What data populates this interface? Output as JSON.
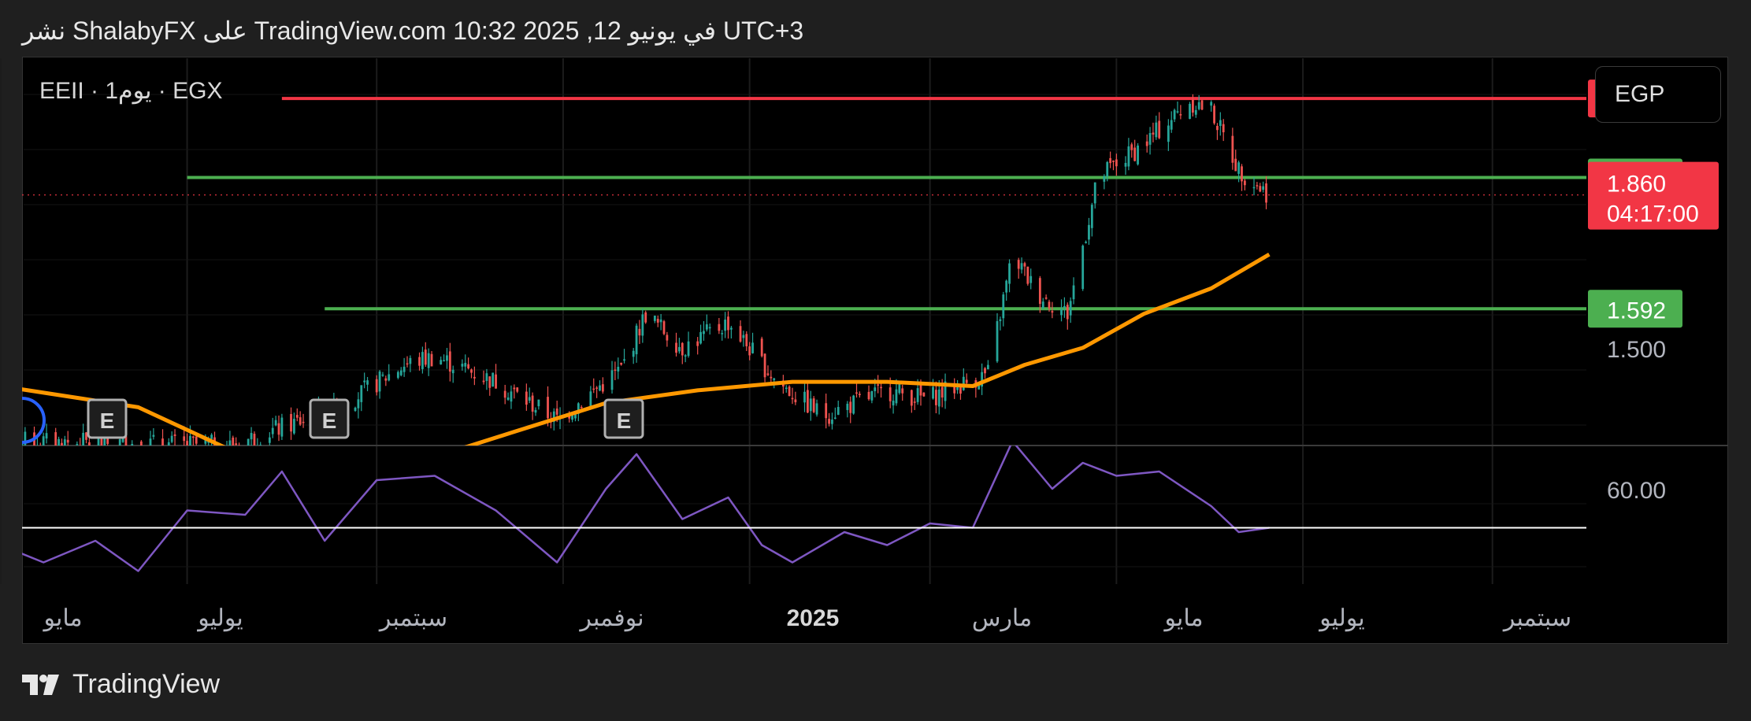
{
  "header": {
    "text": "نشر ShalabyFX على TradingView.com 10:32 2025 ,12 في يونيو UTC+3"
  },
  "symbol": {
    "text": "EEII · 1يوم · EGX"
  },
  "currency": {
    "label": "EGP"
  },
  "footer": {
    "brand": "TradingView"
  },
  "colors": {
    "background": "#000000",
    "red_line": "#f23645",
    "green_line": "#4caf50",
    "ma_line": "#ff9800",
    "rsi_line": "#7e57c2",
    "candle_up": "#26a69a",
    "candle_down": "#ef5350"
  },
  "chart_data": [
    {
      "type": "candlestick",
      "title": "",
      "x_tick_labels": [
        "مايو",
        "يوليو",
        "سبتمبر",
        "نوفمبر",
        "2025",
        "مارس",
        "مايو",
        "يوليو",
        "سبتمبر"
      ],
      "x_range": [
        "2024-05",
        "2025-09"
      ],
      "y_axis_labels": [
        "1.500"
      ],
      "ylim": [
        1.27,
        2.18
      ],
      "last_price": {
        "value": "1.860",
        "countdown": "04:17:00"
      },
      "horizontal_levels": [
        {
          "value": 2.087,
          "label": "2.087",
          "color": "#f23645",
          "start": "2024-08"
        },
        {
          "value": 1.901,
          "label": "1.901",
          "color": "#4caf50",
          "start": "2024-07"
        },
        {
          "value": 1.592,
          "label": "1.592",
          "color": "#4caf50",
          "start": "2024-08-15"
        }
      ],
      "earnings_markers": [
        {
          "date": "2024-06",
          "label": "E"
        },
        {
          "date": "2024-08",
          "label": "E"
        },
        {
          "date": "2024-11",
          "label": "E"
        }
      ],
      "price_path": [
        {
          "date": "2024-05-01",
          "value": 1.28
        },
        {
          "date": "2024-07-15",
          "value": 1.27
        },
        {
          "date": "2024-08-20",
          "value": 1.36
        },
        {
          "date": "2024-09-10",
          "value": 1.46
        },
        {
          "date": "2024-09-20",
          "value": 1.48
        },
        {
          "date": "2024-10-10",
          "value": 1.42
        },
        {
          "date": "2024-10-30",
          "value": 1.33
        },
        {
          "date": "2024-11-20",
          "value": 1.45
        },
        {
          "date": "2024-11-28",
          "value": 1.58
        },
        {
          "date": "2024-12-10",
          "value": 1.5
        },
        {
          "date": "2024-12-25",
          "value": 1.56
        },
        {
          "date": "2025-01-10",
          "value": 1.42
        },
        {
          "date": "2025-01-25",
          "value": 1.34
        },
        {
          "date": "2025-02-15",
          "value": 1.4
        },
        {
          "date": "2025-02-28",
          "value": 1.38
        },
        {
          "date": "2025-03-20",
          "value": 1.44
        },
        {
          "date": "2025-03-28",
          "value": 1.72
        },
        {
          "date": "2025-04-05",
          "value": 1.63
        },
        {
          "date": "2025-04-15",
          "value": 1.58
        },
        {
          "date": "2025-04-25",
          "value": 1.9
        },
        {
          "date": "2025-05-10",
          "value": 1.98
        },
        {
          "date": "2025-05-25",
          "value": 2.08
        },
        {
          "date": "2025-06-01",
          "value": 2.06
        },
        {
          "date": "2025-06-10",
          "value": 1.92
        },
        {
          "date": "2025-06-20",
          "value": 1.86
        }
      ],
      "moving_average": [
        {
          "date": "2024-05-01",
          "value": 1.41
        },
        {
          "date": "2024-06-15",
          "value": 1.36
        },
        {
          "date": "2024-07-15",
          "value": 1.26
        },
        {
          "date": "2024-09-01",
          "value": 1.2
        },
        {
          "date": "2024-10-15",
          "value": 1.3
        },
        {
          "date": "2024-11-15",
          "value": 1.37
        },
        {
          "date": "2024-12-15",
          "value": 1.4
        },
        {
          "date": "2025-01-15",
          "value": 1.42
        },
        {
          "date": "2025-02-15",
          "value": 1.42
        },
        {
          "date": "2025-03-15",
          "value": 1.41
        },
        {
          "date": "2025-04-01",
          "value": 1.46
        },
        {
          "date": "2025-04-20",
          "value": 1.5
        },
        {
          "date": "2025-05-10",
          "value": 1.58
        },
        {
          "date": "2025-06-01",
          "value": 1.64
        },
        {
          "date": "2025-06-20",
          "value": 1.72
        }
      ]
    },
    {
      "type": "line",
      "title": "",
      "y_axis_labels": [
        "60.00"
      ],
      "reference_level": 51,
      "ylim": [
        38,
        70
      ],
      "values": [
        {
          "date": "2024-05-01",
          "value": 47
        },
        {
          "date": "2024-05-15",
          "value": 43
        },
        {
          "date": "2024-06-01",
          "value": 48
        },
        {
          "date": "2024-06-15",
          "value": 41
        },
        {
          "date": "2024-07-01",
          "value": 55
        },
        {
          "date": "2024-07-20",
          "value": 54
        },
        {
          "date": "2024-08-01",
          "value": 64
        },
        {
          "date": "2024-08-15",
          "value": 48
        },
        {
          "date": "2024-09-01",
          "value": 62
        },
        {
          "date": "2024-09-20",
          "value": 63
        },
        {
          "date": "2024-10-10",
          "value": 55
        },
        {
          "date": "2024-10-30",
          "value": 43
        },
        {
          "date": "2024-11-15",
          "value": 60
        },
        {
          "date": "2024-11-25",
          "value": 68
        },
        {
          "date": "2024-12-10",
          "value": 53
        },
        {
          "date": "2024-12-25",
          "value": 58
        },
        {
          "date": "2025-01-05",
          "value": 47
        },
        {
          "date": "2025-01-15",
          "value": 43
        },
        {
          "date": "2025-02-01",
          "value": 50
        },
        {
          "date": "2025-02-15",
          "value": 47
        },
        {
          "date": "2025-03-01",
          "value": 52
        },
        {
          "date": "2025-03-15",
          "value": 51
        },
        {
          "date": "2025-03-28",
          "value": 71
        },
        {
          "date": "2025-04-10",
          "value": 60
        },
        {
          "date": "2025-04-20",
          "value": 66
        },
        {
          "date": "2025-05-01",
          "value": 63
        },
        {
          "date": "2025-05-15",
          "value": 64
        },
        {
          "date": "2025-06-01",
          "value": 56
        },
        {
          "date": "2025-06-10",
          "value": 50
        },
        {
          "date": "2025-06-20",
          "value": 51
        }
      ]
    }
  ]
}
